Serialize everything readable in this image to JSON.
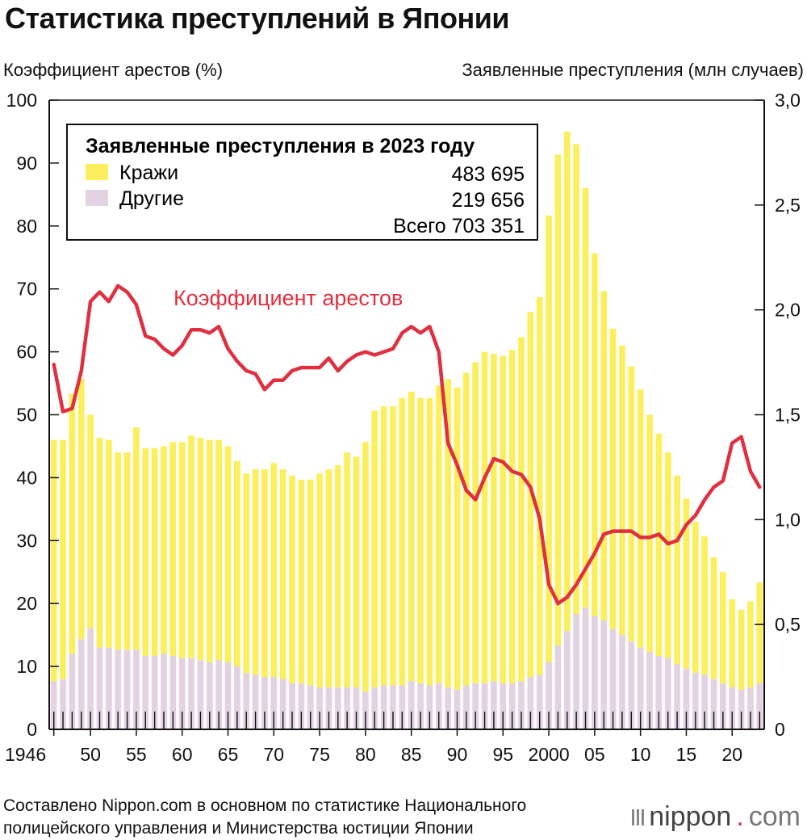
{
  "title": "Статистика преступлений в Японии",
  "axis_left_title": "Коэффициент арестов (%)",
  "axis_right_title": "Заявленные преступления (млн случаев)",
  "source_lines": [
    "Составлено Nippon.com в основном по статистике Национального",
    "полицейского управления и Министерства юстиции Японии"
  ],
  "logo": {
    "word": "nippon",
    "dot": ".",
    "tld": "com"
  },
  "colors": {
    "theft": "#fbef5e",
    "other": "#e2d2e2",
    "rate": "#e03040",
    "axis": "#111111"
  },
  "chart_data": {
    "type": "bar",
    "stacked": true,
    "title": "Статистика преступлений в Японии",
    "ylabel_left": "Коэффициент арестов (%)",
    "ylabel_right": "Заявленные преступления (млн случаев)",
    "ylim_left": [
      0,
      100
    ],
    "ylim_right": [
      0,
      3.0
    ],
    "left_ticks": [
      "0",
      "10",
      "20",
      "30",
      "40",
      "50",
      "60",
      "70",
      "80",
      "90",
      "100"
    ],
    "right_ticks": [
      "0",
      "0,5",
      "1,0",
      "1,5",
      "2,0",
      "2,5",
      "3,0"
    ],
    "x_tick_labels": [
      {
        "year": 1946,
        "label": "1946"
      },
      {
        "year": 1950,
        "label": "50"
      },
      {
        "year": 1955,
        "label": "55"
      },
      {
        "year": 1960,
        "label": "60"
      },
      {
        "year": 1965,
        "label": "65"
      },
      {
        "year": 1970,
        "label": "70"
      },
      {
        "year": 1975,
        "label": "75"
      },
      {
        "year": 1980,
        "label": "80"
      },
      {
        "year": 1985,
        "label": "85"
      },
      {
        "year": 1990,
        "label": "90"
      },
      {
        "year": 1995,
        "label": "95"
      },
      {
        "year": 2000,
        "label": "2000"
      },
      {
        "year": 2005,
        "label": "05"
      },
      {
        "year": 2010,
        "label": "10"
      },
      {
        "year": 2015,
        "label": "15"
      },
      {
        "year": 2020,
        "label": "20"
      }
    ],
    "legend": {
      "title": "Заявленные преступления в 2023 году",
      "items": [
        {
          "name": "Кражи",
          "value": "483 695"
        },
        {
          "name": "Другие",
          "value": "219 656"
        }
      ],
      "total": "Всего 703 351"
    },
    "line_label": "Коэффициент арестов",
    "years": [
      1946,
      1947,
      1948,
      1949,
      1950,
      1951,
      1952,
      1953,
      1954,
      1955,
      1956,
      1957,
      1958,
      1959,
      1960,
      1961,
      1962,
      1963,
      1964,
      1965,
      1966,
      1967,
      1968,
      1969,
      1970,
      1971,
      1972,
      1973,
      1974,
      1975,
      1976,
      1977,
      1978,
      1979,
      1980,
      1981,
      1982,
      1983,
      1984,
      1985,
      1986,
      1987,
      1988,
      1989,
      1990,
      1991,
      1992,
      1993,
      1994,
      1995,
      1996,
      1997,
      1998,
      1999,
      2000,
      2001,
      2002,
      2003,
      2004,
      2005,
      2006,
      2007,
      2008,
      2009,
      2010,
      2011,
      2012,
      2013,
      2014,
      2015,
      2016,
      2017,
      2018,
      2019,
      2020,
      2021,
      2022,
      2023
    ],
    "series": [
      {
        "name": "Кражи (млн)",
        "values": [
          1.15,
          1.14,
          1.24,
          1.24,
          1.02,
          1.0,
          0.99,
          0.94,
          0.94,
          1.06,
          0.99,
          0.99,
          0.99,
          1.02,
          1.03,
          1.06,
          1.06,
          1.06,
          1.05,
          1.03,
          0.98,
          0.95,
          0.98,
          0.99,
          1.02,
          1.0,
          0.99,
          0.97,
          0.98,
          1.02,
          1.04,
          1.06,
          1.12,
          1.1,
          1.19,
          1.32,
          1.33,
          1.33,
          1.37,
          1.38,
          1.36,
          1.37,
          1.42,
          1.47,
          1.44,
          1.49,
          1.53,
          1.58,
          1.56,
          1.56,
          1.59,
          1.64,
          1.74,
          1.8,
          2.13,
          2.34,
          2.38,
          2.24,
          2.0,
          1.73,
          1.57,
          1.43,
          1.38,
          1.31,
          1.23,
          1.13,
          1.06,
          0.98,
          0.9,
          0.81,
          0.72,
          0.66,
          0.58,
          0.53,
          0.42,
          0.38,
          0.41,
          0.48
        ]
      },
      {
        "name": "Другие (млн)",
        "values": [
          0.23,
          0.24,
          0.36,
          0.43,
          0.48,
          0.39,
          0.39,
          0.38,
          0.38,
          0.38,
          0.35,
          0.35,
          0.36,
          0.35,
          0.34,
          0.34,
          0.33,
          0.32,
          0.33,
          0.32,
          0.3,
          0.27,
          0.26,
          0.25,
          0.25,
          0.24,
          0.22,
          0.22,
          0.21,
          0.2,
          0.2,
          0.2,
          0.2,
          0.2,
          0.18,
          0.2,
          0.21,
          0.21,
          0.21,
          0.23,
          0.22,
          0.21,
          0.22,
          0.2,
          0.19,
          0.21,
          0.22,
          0.22,
          0.23,
          0.22,
          0.22,
          0.23,
          0.25,
          0.26,
          0.32,
          0.4,
          0.47,
          0.55,
          0.58,
          0.54,
          0.52,
          0.48,
          0.45,
          0.42,
          0.39,
          0.37,
          0.35,
          0.34,
          0.31,
          0.29,
          0.27,
          0.26,
          0.24,
          0.22,
          0.2,
          0.19,
          0.2,
          0.22
        ]
      },
      {
        "name": "Коэффициент арестов (%)",
        "axis": "left",
        "values": [
          58,
          50.5,
          51,
          57,
          68,
          69.5,
          68,
          70.5,
          69.5,
          67.5,
          62.5,
          62,
          60.5,
          59.5,
          61,
          63.5,
          63.5,
          63,
          64,
          60.5,
          58.5,
          57,
          56.5,
          54,
          55.5,
          55.5,
          57,
          57.5,
          57.5,
          57.5,
          59,
          57,
          58.5,
          59.5,
          60,
          59.5,
          60,
          60.5,
          63,
          64,
          63,
          64,
          60,
          45.5,
          42,
          38,
          36.5,
          40,
          43,
          42.5,
          41,
          40.5,
          38.5,
          33.5,
          23,
          20,
          21,
          23,
          25.5,
          28,
          31,
          31.5,
          31.5,
          31.5,
          30.5,
          30.5,
          31,
          29.5,
          30,
          32.5,
          34,
          36.5,
          38.5,
          39.5,
          45.5,
          46.5,
          41,
          38.5
        ]
      }
    ]
  }
}
